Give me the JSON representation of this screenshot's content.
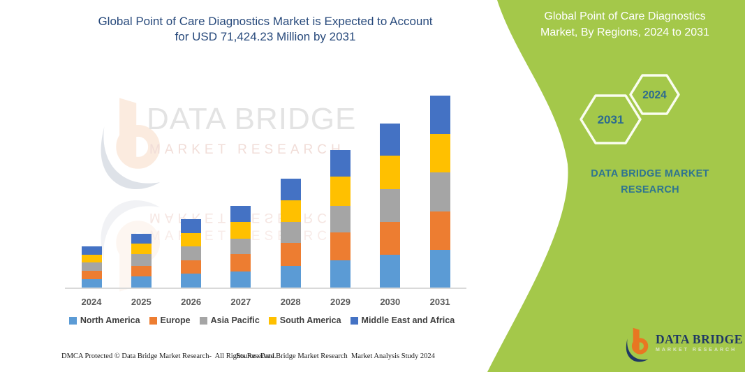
{
  "main_title": {
    "line1": "Global Point of Care Diagnostics Market is Expected to Account",
    "line2": "for USD 71,424.23 Million by 2031",
    "color": "#27497B"
  },
  "watermark": {
    "brand": "DATA BRIDGE",
    "sub": "MARKET  RESEARCH"
  },
  "chart_data": {
    "type": "bar",
    "stacked": true,
    "title": "Global Point of Care Diagnostics Market is Expected to Account for USD 71,424.23 Million by 2031",
    "categories": [
      "2024",
      "2025",
      "2026",
      "2027",
      "2028",
      "2029",
      "2030",
      "2031"
    ],
    "series": [
      {
        "name": "North America",
        "color": "#5B9BD5",
        "values": [
          12,
          16,
          20,
          23,
          31,
          39,
          47,
          54
        ]
      },
      {
        "name": "Europe",
        "color": "#ED7D31",
        "values": [
          12,
          15,
          19,
          25,
          33,
          40,
          47,
          55
        ]
      },
      {
        "name": "Asia Pacific",
        "color": "#A5A5A5",
        "values": [
          12,
          17,
          20,
          22,
          30,
          38,
          47,
          56
        ]
      },
      {
        "name": "South America",
        "color": "#FFC000",
        "values": [
          11,
          15,
          19,
          24,
          31,
          42,
          48,
          55
        ]
      },
      {
        "name": "Middle East and Africa",
        "color": "#4472C4",
        "values": [
          12,
          14,
          20,
          23,
          31,
          38,
          46,
          55
        ]
      }
    ],
    "value_axis": {
      "visible": false,
      "note": "no y-axis or value labels shown; values are relative stacked-segment heights in pixels"
    },
    "xlabel": "",
    "ylabel": "",
    "grid": false,
    "legend_position": "bottom"
  },
  "side_panel": {
    "background": "#A4C84A",
    "title_line1": "Global Point of Care Diagnostics",
    "title_line2": "Market, By Regions, 2024 to 2031",
    "hexagons": [
      {
        "label": "2031"
      },
      {
        "label": "2024"
      }
    ],
    "brand_line1": "DATA BRIDGE MARKET",
    "brand_line2": "RESEARCH",
    "brand_color": "#2E7490"
  },
  "logo": {
    "name": "DATA BRIDGE",
    "subtitle": "MARKET RESEARCH",
    "name_color": "#1F3864"
  },
  "footer": {
    "dmca": "DMCA Protected © Data Bridge Market Research-  All Rights Reserved.",
    "source": "Source: Data Bridge Market Research  Market Analysis Study 2024"
  }
}
